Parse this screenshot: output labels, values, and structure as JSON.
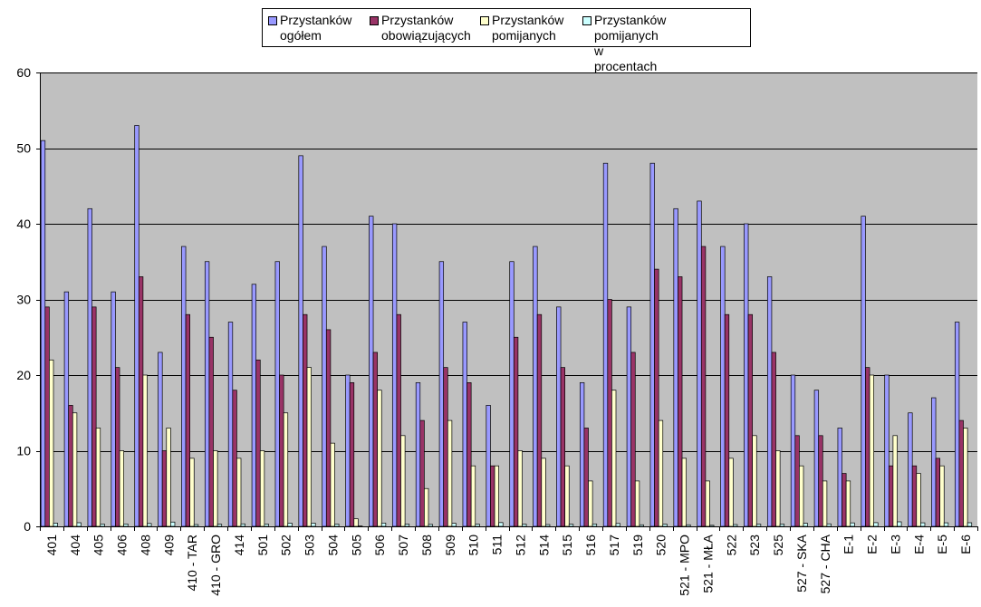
{
  "chart_data": {
    "type": "bar",
    "ylim": [
      0,
      60
    ],
    "yticks": [
      "0",
      "10",
      "20",
      "30",
      "40",
      "50",
      "60"
    ],
    "grid": true,
    "legend_position": "top",
    "categories": [
      "401",
      "404",
      "405",
      "406",
      "408",
      "409",
      "410 - TAR",
      "410 - GRO",
      "414",
      "501",
      "502",
      "503",
      "504",
      "505",
      "506",
      "507",
      "508",
      "509",
      "510",
      "511",
      "512",
      "514",
      "515",
      "516",
      "517",
      "519",
      "520",
      "521 - MPO",
      "521 - MŁA",
      "522",
      "523",
      "525",
      "527 - SKA",
      "527 - CHA",
      "E-1",
      "E-2",
      "E-3",
      "E-4",
      "E-5",
      "E-6"
    ],
    "series": [
      {
        "name": "Przystanków\nogółem",
        "color": "#9999ff",
        "values": [
          51,
          31,
          42,
          31,
          53,
          23,
          37,
          35,
          27,
          32,
          35,
          49,
          37,
          20,
          41,
          40,
          19,
          35,
          27,
          16,
          35,
          37,
          29,
          19,
          48,
          29,
          48,
          42,
          43,
          37,
          40,
          33,
          20,
          18,
          13,
          41,
          20,
          15,
          17,
          27
        ]
      },
      {
        "name": "Przystanków\nobowiązujących",
        "color": "#993366",
        "values": [
          29,
          16,
          29,
          21,
          33,
          10,
          28,
          25,
          18,
          22,
          20,
          28,
          26,
          19,
          23,
          28,
          14,
          21,
          19,
          8,
          25,
          28,
          21,
          13,
          30,
          23,
          34,
          33,
          37,
          28,
          28,
          23,
          12,
          12,
          7,
          21,
          8,
          8,
          9,
          14
        ]
      },
      {
        "name": "Przystanków\npomijanych",
        "color": "#ffffcc",
        "values": [
          22,
          15,
          13,
          10,
          20,
          13,
          9,
          10,
          9,
          10,
          15,
          21,
          11,
          1,
          18,
          12,
          5,
          14,
          8,
          8,
          10,
          9,
          8,
          6,
          18,
          6,
          14,
          9,
          6,
          9,
          12,
          10,
          8,
          6,
          6,
          20,
          12,
          7,
          8,
          13
        ]
      },
      {
        "name": "Przystanków\npomijanych w procentach",
        "color": "#ccffff",
        "values": [
          0.43,
          0.48,
          0.31,
          0.32,
          0.38,
          0.57,
          0.24,
          0.29,
          0.33,
          0.31,
          0.43,
          0.43,
          0.3,
          0.05,
          0.44,
          0.3,
          0.26,
          0.4,
          0.3,
          0.5,
          0.29,
          0.24,
          0.28,
          0.32,
          0.38,
          0.21,
          0.29,
          0.21,
          0.14,
          0.24,
          0.3,
          0.3,
          0.4,
          0.33,
          0.46,
          0.49,
          0.6,
          0.47,
          0.47,
          0.48
        ]
      }
    ]
  }
}
